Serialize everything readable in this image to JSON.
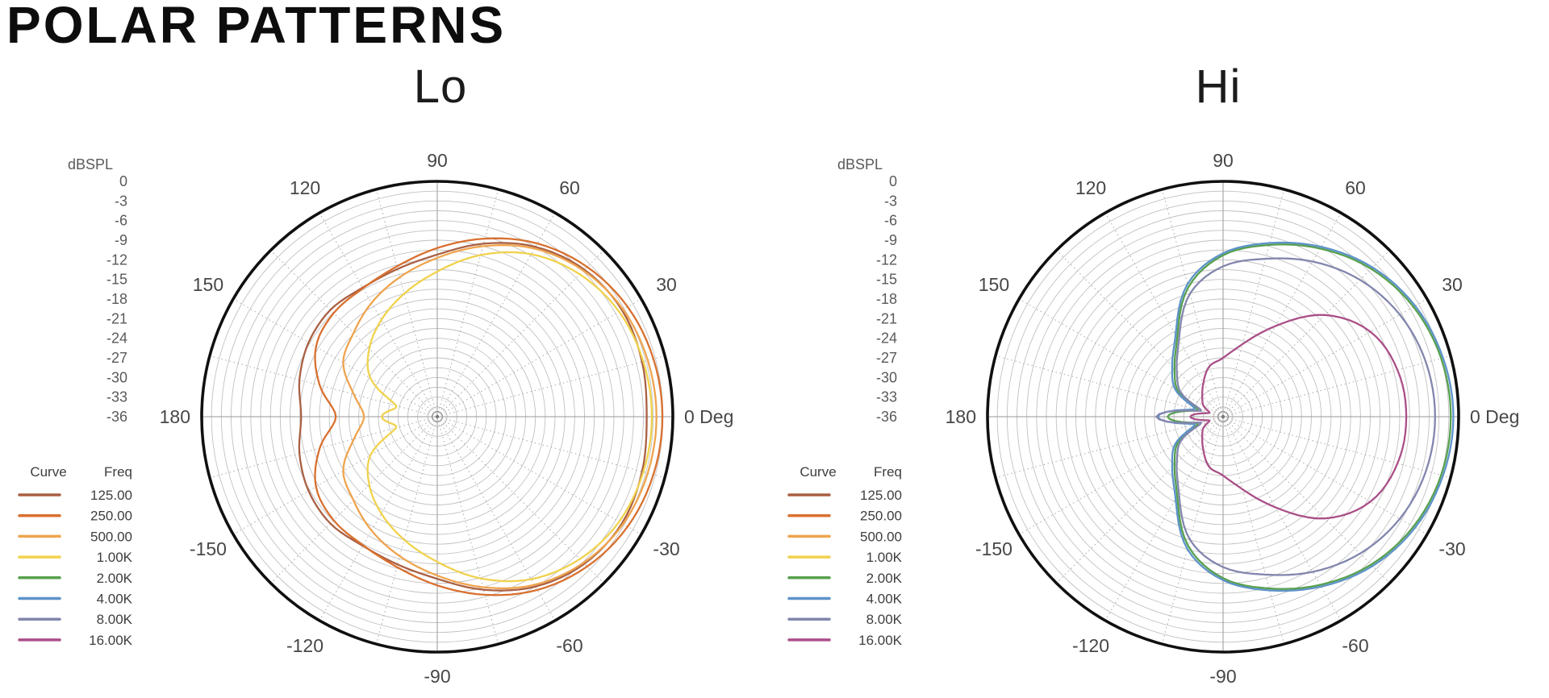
{
  "page_title": "POLAR PATTERNS",
  "radial_axis": {
    "label": "dBSPL",
    "tick_labels": [
      "0",
      "-3",
      "-6",
      "-9",
      "-12",
      "-15",
      "-18",
      "-21",
      "-24",
      "-27",
      "-30",
      "-33",
      "-36"
    ],
    "max_db": 0,
    "min_db": -36,
    "ring_step_db": 1.5,
    "rings": 24,
    "spoke_step_deg": 15
  },
  "angle_ticks": [
    {
      "label": "90",
      "angle_deg": 90
    },
    {
      "label": "60",
      "angle_deg": 60
    },
    {
      "label": "30",
      "angle_deg": 30
    },
    {
      "label": "0 Deg",
      "angle_deg": 0
    },
    {
      "label": "-30",
      "angle_deg": -30
    },
    {
      "label": "-60",
      "angle_deg": -60
    },
    {
      "label": "-90",
      "angle_deg": -90
    },
    {
      "label": "-120",
      "angle_deg": -120
    },
    {
      "label": "-150",
      "angle_deg": -150
    },
    {
      "label": "180",
      "angle_deg": 180
    },
    {
      "label": "150",
      "angle_deg": 150
    },
    {
      "label": "120",
      "angle_deg": 120
    }
  ],
  "legend": {
    "curve_header": "Curve",
    "freq_header": "Freq",
    "items": [
      {
        "freq": "125.00",
        "color": "#aa6043"
      },
      {
        "freq": "250.00",
        "color": "#d8702f"
      },
      {
        "freq": "500.00",
        "color": "#efa44e"
      },
      {
        "freq": "1.00K",
        "color": "#f0d24d"
      },
      {
        "freq": "2.00K",
        "color": "#57a04e"
      },
      {
        "freq": "4.00K",
        "color": "#5d93c9"
      },
      {
        "freq": "8.00K",
        "color": "#8286ad"
      },
      {
        "freq": "16.00K",
        "color": "#aa4f88"
      }
    ]
  },
  "chart_data": [
    {
      "type": "polar",
      "title": "Lo",
      "angle_unit": "deg",
      "radial_unit": "dBSPL",
      "rlim": [
        -36,
        0
      ],
      "angles_deg": [
        0,
        15,
        30,
        45,
        60,
        75,
        90,
        105,
        120,
        135,
        150,
        165,
        180
      ],
      "symmetric_about_0": true,
      "series": [
        {
          "name": "125.00",
          "color": "#aa6043",
          "values_db": [
            -4.0,
            -3.6,
            -3.4,
            -4.2,
            -6.0,
            -8.6,
            -11.2,
            -12.6,
            -13.2,
            -12.9,
            -13.3,
            -14.2,
            -15.2
          ]
        },
        {
          "name": "250.00",
          "color": "#d8702f",
          "values_db": [
            -1.6,
            -1.8,
            -2.4,
            -3.6,
            -5.4,
            -7.8,
            -10.2,
            -12.2,
            -13.3,
            -13.6,
            -14.6,
            -17.4,
            -20.5
          ]
        },
        {
          "name": "500.00",
          "color": "#efa44e",
          "values_db": [
            -2.5,
            -2.7,
            -3.2,
            -4.4,
            -6.3,
            -9.0,
            -11.7,
            -13.9,
            -15.9,
            -17.9,
            -19.4,
            -22.8,
            -24.8
          ]
        },
        {
          "name": "1.00K",
          "color": "#f0d24d",
          "values_db": [
            -3.2,
            -3.4,
            -3.9,
            -5.2,
            -7.3,
            -10.4,
            -13.8,
            -16.5,
            -18.9,
            -21.3,
            -24.2,
            -29.5,
            -27.5
          ]
        }
      ]
    },
    {
      "type": "polar",
      "title": "Hi",
      "angle_unit": "deg",
      "radial_unit": "dBSPL",
      "rlim": [
        -36,
        0
      ],
      "angles_deg": [
        0,
        15,
        30,
        45,
        60,
        75,
        90,
        105,
        120,
        135,
        150,
        165,
        180
      ],
      "symmetric_about_0": true,
      "series": [
        {
          "name": "2.00K",
          "color": "#57a04e",
          "values_db": [
            -1.2,
            -1.5,
            -2.4,
            -4.0,
            -6.3,
            -8.8,
            -11.3,
            -15.5,
            -22.0,
            -25.5,
            -28.0,
            -32.0,
            -27.5
          ]
        },
        {
          "name": "4.00K",
          "color": "#5d93c9",
          "values_db": [
            -0.8,
            -1.2,
            -2.1,
            -3.7,
            -6.0,
            -8.5,
            -11.0,
            -15.0,
            -21.5,
            -25.0,
            -27.5,
            -31.5,
            -26.0
          ]
        },
        {
          "name": "8.00K",
          "color": "#8286ad",
          "values_db": [
            -3.6,
            -3.9,
            -4.8,
            -6.4,
            -8.6,
            -11.0,
            -13.0,
            -16.5,
            -22.5,
            -26.0,
            -28.5,
            -32.5,
            -25.8
          ]
        },
        {
          "name": "16.00K",
          "color": "#aa4f88",
          "values_db": [
            -8.0,
            -8.4,
            -10.0,
            -14.0,
            -20.0,
            -24.5,
            -27.0,
            -28.0,
            -30.0,
            -31.5,
            -32.5,
            -33.8,
            -31.0
          ]
        }
      ]
    }
  ]
}
